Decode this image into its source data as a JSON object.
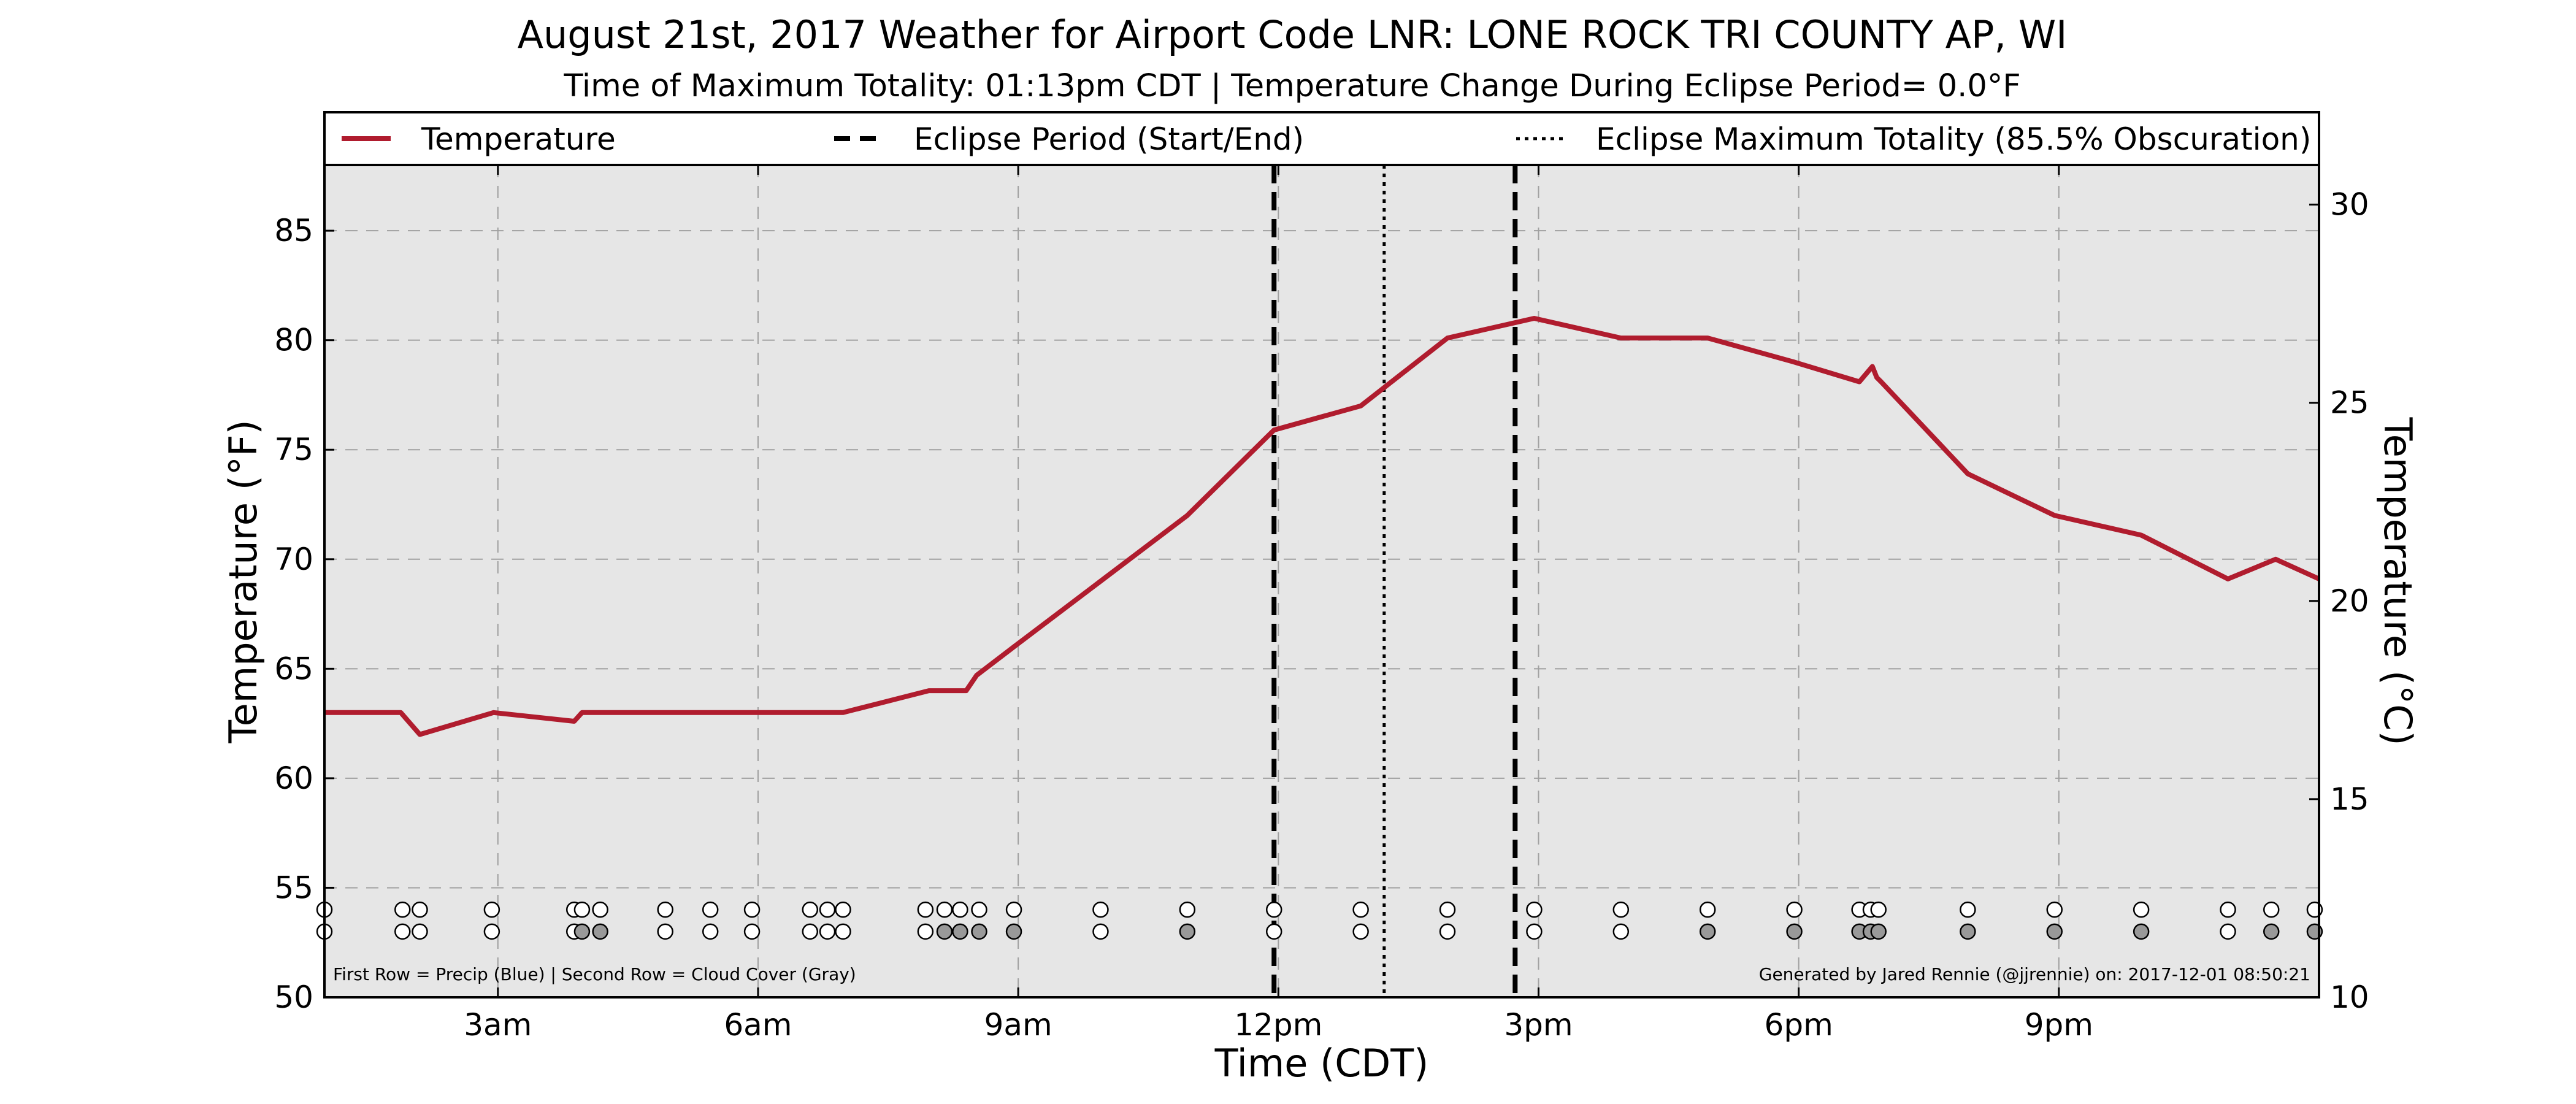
{
  "chart_data": {
    "type": "line",
    "title": "August 21st, 2017 Weather for Airport Code LNR: LONE ROCK TRI COUNTY AP, WI",
    "subtitle": "Time of Maximum Totality: 01:13pm CDT | Temperature Change During Eclipse Period= 0.0°F",
    "xlabel": "Time (CDT)",
    "ylabel": "Temperature (°F)",
    "y2label": "Temperature (°C)",
    "x_unit": "hours after midnight (CDT)",
    "xlim": [
      1,
      24
    ],
    "ylim": [
      50,
      88
    ],
    "y2lim": [
      10,
      31
    ],
    "x_ticks": [
      {
        "value": 3,
        "label": "3am"
      },
      {
        "value": 6,
        "label": "6am"
      },
      {
        "value": 9,
        "label": "9am"
      },
      {
        "value": 12,
        "label": "12pm"
      },
      {
        "value": 15,
        "label": "3pm"
      },
      {
        "value": 18,
        "label": "6pm"
      },
      {
        "value": 21,
        "label": "9pm"
      }
    ],
    "y_ticks": [
      50,
      55,
      60,
      65,
      70,
      75,
      80,
      85
    ],
    "y2_ticks": [
      10,
      15,
      20,
      25,
      30
    ],
    "grid": true,
    "legend_position": "top",
    "legend": [
      {
        "label": "Temperature",
        "style": "solid"
      },
      {
        "label": "Eclipse Period (Start/End)",
        "style": "dashed"
      },
      {
        "label": "Eclipse Maximum Totality (85.5% Obscuration)",
        "style": "dotted"
      }
    ],
    "series": [
      {
        "name": "Temperature",
        "color": "#b01c2e",
        "x": [
          1.0,
          1.88,
          2.1,
          2.95,
          3.88,
          3.97,
          4.9,
          5.45,
          5.95,
          6.6,
          6.8,
          6.98,
          7.97,
          8.2,
          8.4,
          8.52,
          8.95,
          9.95,
          10.95,
          11.95,
          12.95,
          13.95,
          14.95,
          15.95,
          16.45,
          16.95,
          17.95,
          18.7,
          18.85,
          18.9,
          18.95,
          19.95,
          20.95,
          21.95,
          22.95,
          23.5,
          24.0
        ],
        "y": [
          63,
          63,
          62,
          63,
          62.6,
          63,
          63,
          63,
          63,
          63,
          63,
          63,
          64,
          64,
          64,
          64.7,
          66,
          69,
          72,
          75.9,
          77,
          80.1,
          81,
          80.1,
          80.1,
          80.1,
          79,
          78.1,
          78.8,
          78.3,
          78.1,
          73.9,
          72,
          71.1,
          69.1,
          70,
          69.1
        ]
      }
    ],
    "eclipse_period": {
      "start": 11.95,
      "end": 14.73
    },
    "eclipse_maximum": 13.22,
    "marker_rows": {
      "precip_y": 54,
      "cloud_y": 53,
      "precip": [
        1.0,
        1.9,
        2.1,
        2.93,
        3.88,
        3.97,
        4.18,
        4.93,
        5.45,
        5.93,
        6.6,
        6.8,
        6.98,
        7.93,
        8.15,
        8.33,
        8.55,
        8.95,
        9.95,
        10.95,
        11.95,
        12.95,
        13.95,
        14.95,
        15.95,
        16.95,
        17.95,
        18.7,
        18.83,
        18.92,
        19.95,
        20.95,
        21.95,
        22.95,
        23.45,
        23.95
      ],
      "cloud": [
        {
          "x": 1.0,
          "filled": false
        },
        {
          "x": 1.9,
          "filled": false
        },
        {
          "x": 2.1,
          "filled": false
        },
        {
          "x": 2.93,
          "filled": false
        },
        {
          "x": 3.88,
          "filled": false
        },
        {
          "x": 3.97,
          "filled": true
        },
        {
          "x": 4.18,
          "filled": true
        },
        {
          "x": 4.93,
          "filled": false
        },
        {
          "x": 5.45,
          "filled": false
        },
        {
          "x": 5.93,
          "filled": false
        },
        {
          "x": 6.6,
          "filled": false
        },
        {
          "x": 6.8,
          "filled": false
        },
        {
          "x": 6.98,
          "filled": false
        },
        {
          "x": 7.93,
          "filled": false
        },
        {
          "x": 8.15,
          "filled": true
        },
        {
          "x": 8.33,
          "filled": true
        },
        {
          "x": 8.55,
          "filled": true
        },
        {
          "x": 8.95,
          "filled": true
        },
        {
          "x": 9.95,
          "filled": false
        },
        {
          "x": 10.95,
          "filled": true
        },
        {
          "x": 11.95,
          "filled": false
        },
        {
          "x": 12.95,
          "filled": false
        },
        {
          "x": 13.95,
          "filled": false
        },
        {
          "x": 14.95,
          "filled": false
        },
        {
          "x": 15.95,
          "filled": false
        },
        {
          "x": 16.95,
          "filled": true
        },
        {
          "x": 17.95,
          "filled": true
        },
        {
          "x": 18.7,
          "filled": true
        },
        {
          "x": 18.83,
          "filled": true
        },
        {
          "x": 18.92,
          "filled": true
        },
        {
          "x": 19.95,
          "filled": true
        },
        {
          "x": 20.95,
          "filled": true
        },
        {
          "x": 21.95,
          "filled": true
        },
        {
          "x": 22.95,
          "filled": false
        },
        {
          "x": 23.45,
          "filled": true
        },
        {
          "x": 23.95,
          "filled": true
        }
      ],
      "open_color": "#ffffff",
      "filled_color": "#999999"
    },
    "footnote_left": "First Row = Precip (Blue) | Second Row = Cloud Cover (Gray)",
    "footnote_right": "Generated by Jared Rennie (@jjrennie) on: 2017-12-01 08:50:21"
  }
}
